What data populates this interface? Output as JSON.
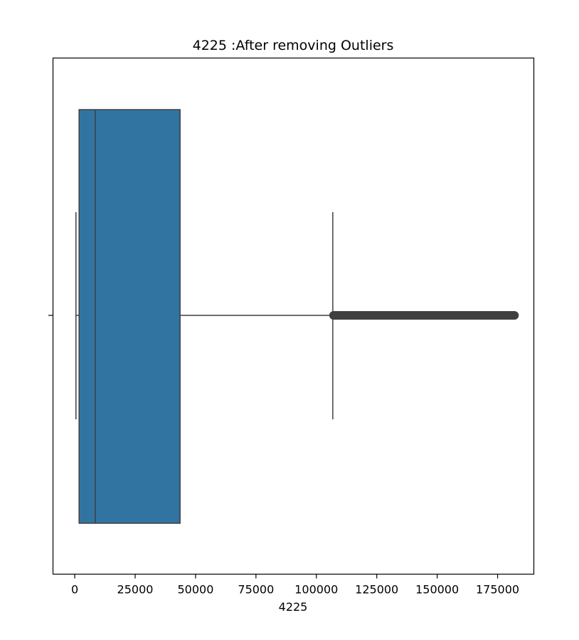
{
  "chart_data": {
    "type": "box",
    "title": "4225 :After removing Outliers",
    "xlabel": "4225",
    "ylabel": "",
    "xlim": [
      -9000,
      190000
    ],
    "xticks": [
      0,
      25000,
      50000,
      75000,
      100000,
      125000,
      150000,
      175000
    ],
    "xtick_labels": [
      "0",
      "25000",
      "50000",
      "75000",
      "100000",
      "125000",
      "150000",
      "175000"
    ],
    "orientation": "horizontal",
    "box": {
      "whisker_low": 500,
      "q1": 1800,
      "median": 8500,
      "q3": 43600,
      "whisker_high": 106800
    },
    "outliers": {
      "min": 106800,
      "max": 182000
    },
    "colors": {
      "box_fill": "#3274a1",
      "lines": "#3f3f3f",
      "outliers": "#3f3f3f"
    },
    "grid": false,
    "legend": "none"
  }
}
